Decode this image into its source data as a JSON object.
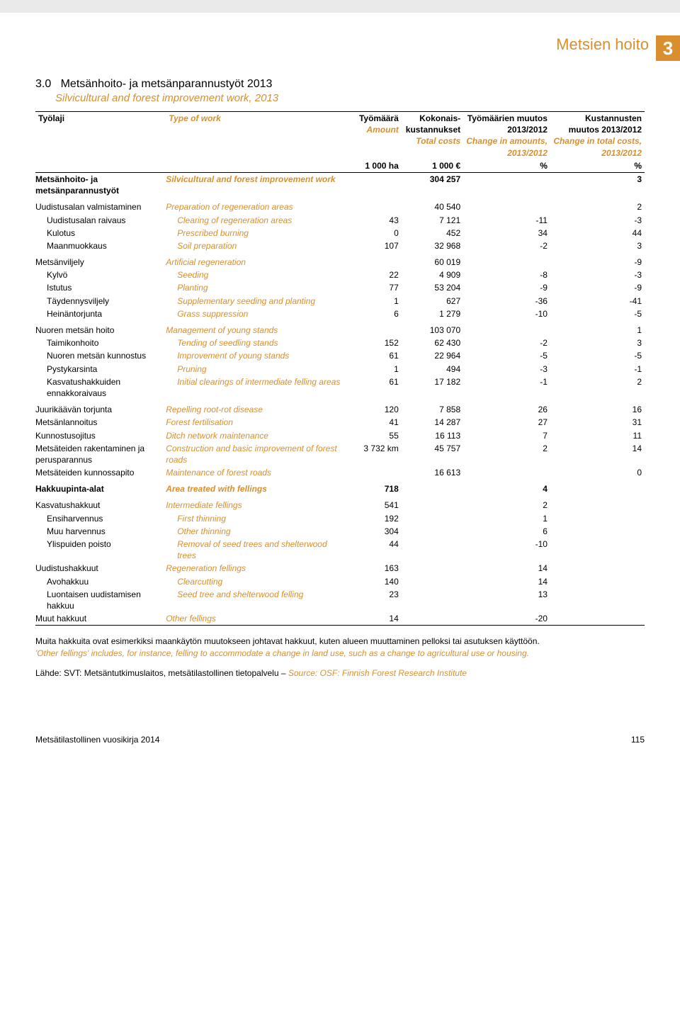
{
  "header": {
    "title": "Metsien hoito",
    "badge": "3"
  },
  "section": {
    "num": "3.0",
    "title_fi": "Metsänhoito- ja metsänparannustyöt 2013",
    "title_en": "Silvicultural and forest improvement work, 2013"
  },
  "colhead": {
    "c1_fi": "Työlaji",
    "c1_en": "Type of work",
    "c2_fi": "Työmäärä",
    "c2_en": "Amount",
    "c3_fi": "Kokonais-kustannukset",
    "c3_en": "Total costs",
    "c4_fi": "Työmäärien muutos 2013/2012",
    "c4_en": "Change in amounts, 2013/2012",
    "c5_fi": "Kustannusten muutos 2013/2012",
    "c5_en": "Change in total costs, 2013/2012",
    "u1": "1 000 ha",
    "u2": "1 000 €",
    "u3": "%",
    "u4": "%"
  },
  "rows": [
    {
      "fi": "Metsänhoito- ja metsänparannustyöt",
      "en": "Silvicultural and forest improvement work",
      "a": "",
      "b": "304 257",
      "c": "",
      "d": "3",
      "bold": true,
      "indent": 0,
      "gap": false
    },
    {
      "fi": "Uudistusalan valmistaminen",
      "en": "Preparation of regeneration areas",
      "a": "",
      "b": "40 540",
      "c": "",
      "d": "2",
      "bold": false,
      "indent": 0,
      "gap": true
    },
    {
      "fi": "Uudistusalan raivaus",
      "en": "Clearing of regeneration areas",
      "a": "43",
      "b": "7 121",
      "c": "-11",
      "d": "-3",
      "bold": false,
      "indent": 1,
      "gap": false
    },
    {
      "fi": "Kulotus",
      "en": "Prescribed burning",
      "a": "0",
      "b": "452",
      "c": "34",
      "d": "44",
      "bold": false,
      "indent": 1,
      "gap": false
    },
    {
      "fi": "Maanmuokkaus",
      "en": "Soil preparation",
      "a": "107",
      "b": "32 968",
      "c": "-2",
      "d": "3",
      "bold": false,
      "indent": 1,
      "gap": false
    },
    {
      "fi": "Metsänviljely",
      "en": "Artificial regeneration",
      "a": "",
      "b": "60 019",
      "c": "",
      "d": "-9",
      "bold": false,
      "indent": 0,
      "gap": true
    },
    {
      "fi": "Kylvö",
      "en": "Seeding",
      "a": "22",
      "b": "4 909",
      "c": "-8",
      "d": "-3",
      "bold": false,
      "indent": 1,
      "gap": false
    },
    {
      "fi": "Istutus",
      "en": "Planting",
      "a": "77",
      "b": "53 204",
      "c": "-9",
      "d": "-9",
      "bold": false,
      "indent": 1,
      "gap": false
    },
    {
      "fi": "Täydennysviljely",
      "en": "Supplementary seeding and planting",
      "a": "1",
      "b": "627",
      "c": "-36",
      "d": "-41",
      "bold": false,
      "indent": 1,
      "gap": false
    },
    {
      "fi": "Heinäntorjunta",
      "en": "Grass suppression",
      "a": "6",
      "b": "1 279",
      "c": "-10",
      "d": "-5",
      "bold": false,
      "indent": 1,
      "gap": false
    },
    {
      "fi": "Nuoren metsän hoito",
      "en": "Management of young stands",
      "a": "",
      "b": "103 070",
      "c": "",
      "d": "1",
      "bold": false,
      "indent": 0,
      "gap": true
    },
    {
      "fi": "Taimikonhoito",
      "en": "Tending of seedling stands",
      "a": "152",
      "b": "62 430",
      "c": "-2",
      "d": "3",
      "bold": false,
      "indent": 1,
      "gap": false
    },
    {
      "fi": "Nuoren metsän kunnostus",
      "en": "Improvement of young stands",
      "a": "61",
      "b": "22 964",
      "c": "-5",
      "d": "-5",
      "bold": false,
      "indent": 1,
      "gap": false
    },
    {
      "fi": "Pystykarsinta",
      "en": "Pruning",
      "a": "1",
      "b": "494",
      "c": "-3",
      "d": "-1",
      "bold": false,
      "indent": 1,
      "gap": false
    },
    {
      "fi": "Kasvatushakkuiden ennakkoraivaus",
      "en": "Initial clearings of intermediate felling areas",
      "a": "61",
      "b": "17 182",
      "c": "-1",
      "d": "2",
      "bold": false,
      "indent": 1,
      "gap": false
    },
    {
      "fi": "Juurikäävän torjunta",
      "en": "Repelling root-rot disease",
      "a": "120",
      "b": "7 858",
      "c": "26",
      "d": "16",
      "bold": false,
      "indent": 0,
      "gap": true
    },
    {
      "fi": "Metsänlannoitus",
      "en": "Forest fertilisation",
      "a": "41",
      "b": "14 287",
      "c": "27",
      "d": "31",
      "bold": false,
      "indent": 0,
      "gap": false
    },
    {
      "fi": "Kunnostusojitus",
      "en": "Ditch network maintenance",
      "a": "55",
      "b": "16 113",
      "c": "7",
      "d": "11",
      "bold": false,
      "indent": 0,
      "gap": false
    },
    {
      "fi": "Metsäteiden rakentaminen ja perusparannus",
      "en": "Construction and basic improvement of forest roads",
      "a": "3 732 km",
      "b": "45 757",
      "c": "2",
      "d": "14",
      "bold": false,
      "indent": 0,
      "gap": false
    },
    {
      "fi": "Metsäteiden kunnossapito",
      "en": "Maintenance of forest roads",
      "a": "",
      "b": "16 613",
      "c": "",
      "d": "0",
      "bold": false,
      "indent": 0,
      "gap": false
    },
    {
      "fi": "Hakkuupinta-alat",
      "en": "Area treated with fellings",
      "a": "718",
      "b": "",
      "c": "4",
      "d": "",
      "bold": true,
      "indent": 0,
      "gap": true
    },
    {
      "fi": "Kasvatushakkuut",
      "en": "Intermediate fellings",
      "a": "541",
      "b": "",
      "c": "2",
      "d": "",
      "bold": false,
      "indent": 0,
      "gap": true
    },
    {
      "fi": "Ensiharvennus",
      "en": "First thinning",
      "a": "192",
      "b": "",
      "c": "1",
      "d": "",
      "bold": false,
      "indent": 1,
      "gap": false
    },
    {
      "fi": "Muu harvennus",
      "en": "Other thinning",
      "a": "304",
      "b": "",
      "c": "6",
      "d": "",
      "bold": false,
      "indent": 1,
      "gap": false
    },
    {
      "fi": "Ylispuiden poisto",
      "en": "Removal of seed trees and shelterwood trees",
      "a": "44",
      "b": "",
      "c": "-10",
      "d": "",
      "bold": false,
      "indent": 1,
      "gap": false
    },
    {
      "fi": "Uudistushakkuut",
      "en": "Regeneration fellings",
      "a": "163",
      "b": "",
      "c": "14",
      "d": "",
      "bold": false,
      "indent": 0,
      "gap": false
    },
    {
      "fi": "Avohakkuu",
      "en": "Clearcutting",
      "a": "140",
      "b": "",
      "c": "14",
      "d": "",
      "bold": false,
      "indent": 1,
      "gap": false
    },
    {
      "fi": "Luontaisen uudistamisen hakkuu",
      "en": "Seed tree and shelterwood felling",
      "a": "23",
      "b": "",
      "c": "13",
      "d": "",
      "bold": false,
      "indent": 1,
      "gap": false
    },
    {
      "fi": "Muut hakkuut",
      "en": "Other fellings",
      "a": "14",
      "b": "",
      "c": "-20",
      "d": "",
      "bold": false,
      "indent": 0,
      "gap": false
    }
  ],
  "notes": {
    "fi": "Muita hakkuita ovat esimerkiksi maankäytön muutokseen johtavat hakkuut, kuten alueen muuttaminen pelloksi tai asutuksen käyttöön.",
    "en": "'Other fellings' includes, for instance, felling to accommodate a change in land use, such as a change to agricultural use or housing."
  },
  "source": {
    "fi": "Lähde: SVT: Metsäntutkimuslaitos, metsätilastollinen tietopalvelu – ",
    "en": "Source: OSF: Finnish Forest Research Institute"
  },
  "footer": {
    "left": "Metsätilastollinen vuosikirja 2014",
    "page": "115"
  }
}
